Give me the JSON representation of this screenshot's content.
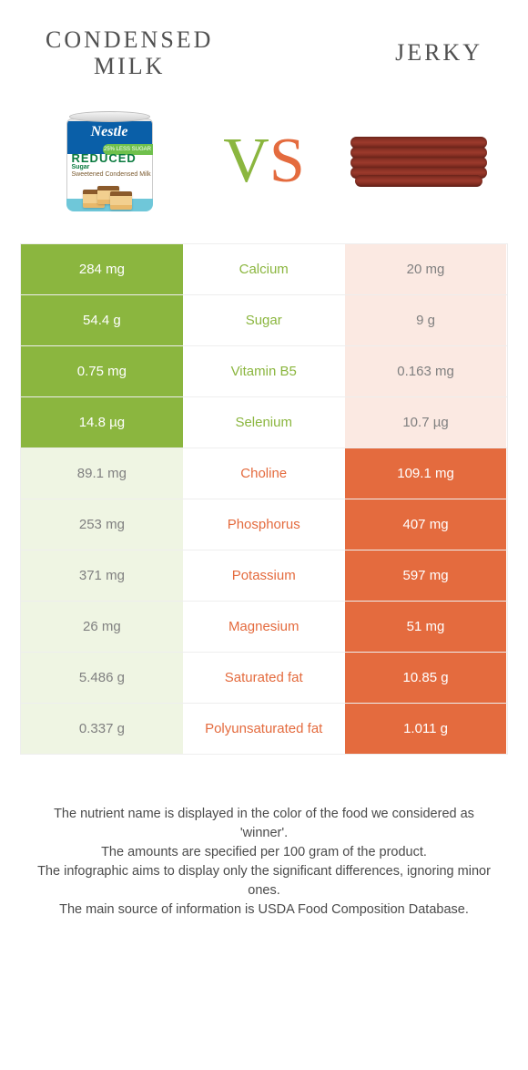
{
  "header": {
    "left_title_line1": "CONDENSED",
    "left_title_line2": "MILK",
    "right_title": "JERKY"
  },
  "vs": {
    "v": "V",
    "s": "S"
  },
  "colors": {
    "green": "#8bb63f",
    "orange": "#e46b3e",
    "pale_green": "#eff5e3",
    "pale_orange": "#fbe9e2"
  },
  "can": {
    "logo": "Nestle",
    "banner": "25% LESS SUGAR",
    "reduced": "REDUCED",
    "sub1": "Sugar",
    "sub2": "Sweetened Condensed Milk"
  },
  "rows": [
    {
      "left": "284 mg",
      "label": "Calcium",
      "right": "20 mg",
      "winner": "left"
    },
    {
      "left": "54.4 g",
      "label": "Sugar",
      "right": "9 g",
      "winner": "left"
    },
    {
      "left": "0.75 mg",
      "label": "Vitamin B5",
      "right": "0.163 mg",
      "winner": "left"
    },
    {
      "left": "14.8 µg",
      "label": "Selenium",
      "right": "10.7 µg",
      "winner": "left"
    },
    {
      "left": "89.1 mg",
      "label": "Choline",
      "right": "109.1 mg",
      "winner": "right"
    },
    {
      "left": "253 mg",
      "label": "Phosphorus",
      "right": "407 mg",
      "winner": "right"
    },
    {
      "left": "371 mg",
      "label": "Potassium",
      "right": "597 mg",
      "winner": "right"
    },
    {
      "left": "26 mg",
      "label": "Magnesium",
      "right": "51 mg",
      "winner": "right"
    },
    {
      "left": "5.486 g",
      "label": "Saturated fat",
      "right": "10.85 g",
      "winner": "right"
    },
    {
      "left": "0.337 g",
      "label": "Polyunsaturated fat",
      "right": "1.011 g",
      "winner": "right"
    }
  ],
  "footer": {
    "line1": "The nutrient name is displayed in the color of the food we considered as 'winner'.",
    "line2": "The amounts are specified per 100 gram of the product.",
    "line3": "The infographic aims to display only the significant differences, ignoring minor ones.",
    "line4": "The main source of information is USDA Food Composition Database."
  }
}
